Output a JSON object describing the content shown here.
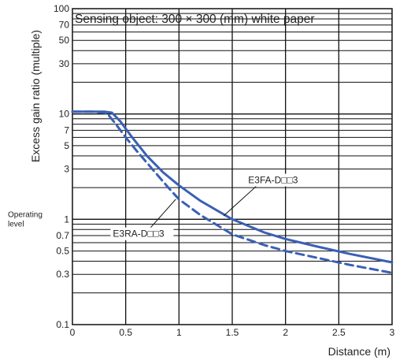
{
  "chart_data": {
    "type": "line",
    "annotation": "Sensing object: 300 × 300 (mm) white paper",
    "xlabel": "Distance (m)",
    "ylabel": "Excess gain ratio (multiple)",
    "y_scale": "log",
    "xlim": [
      0,
      3
    ],
    "ylim": [
      0.1,
      100
    ],
    "x_ticks": [
      "0",
      "0.5",
      "1",
      "1.5",
      "2",
      "2.5",
      "3"
    ],
    "y_ticks": [
      "0.1",
      "0.3",
      "0.5",
      "0.7",
      "1",
      "3",
      "5",
      "7",
      "10",
      "30",
      "50",
      "70",
      "100"
    ],
    "reference_line": {
      "label_line1": "Operating",
      "label_line2": "level",
      "value": 1
    },
    "series": [
      {
        "name": "E3FA-D□□3",
        "style": "solid",
        "color": "#3a60b6",
        "x": [
          0,
          0.1,
          0.2,
          0.3,
          0.37,
          0.45,
          0.55,
          0.7,
          0.85,
          1.0,
          1.2,
          1.5,
          1.8,
          2.0,
          2.3,
          2.6,
          3.0
        ],
        "y": [
          10.5,
          10.5,
          10.5,
          10.5,
          10.3,
          8.5,
          6.2,
          4.0,
          2.8,
          2.1,
          1.5,
          1.0,
          0.75,
          0.65,
          0.55,
          0.47,
          0.39
        ]
      },
      {
        "name": "E3RA-D□□3",
        "style": "dashed",
        "color": "#3a60b6",
        "x": [
          0,
          0.1,
          0.2,
          0.3,
          0.33,
          0.4,
          0.5,
          0.6,
          0.75,
          0.9,
          1.0,
          1.2,
          1.5,
          1.8,
          2.0,
          2.3,
          2.6,
          3.0
        ],
        "y": [
          10.5,
          10.5,
          10.5,
          10.3,
          10.0,
          8.2,
          6.0,
          4.5,
          3.0,
          2.0,
          1.55,
          1.1,
          0.72,
          0.57,
          0.5,
          0.43,
          0.37,
          0.31
        ]
      }
    ],
    "grid": true
  }
}
